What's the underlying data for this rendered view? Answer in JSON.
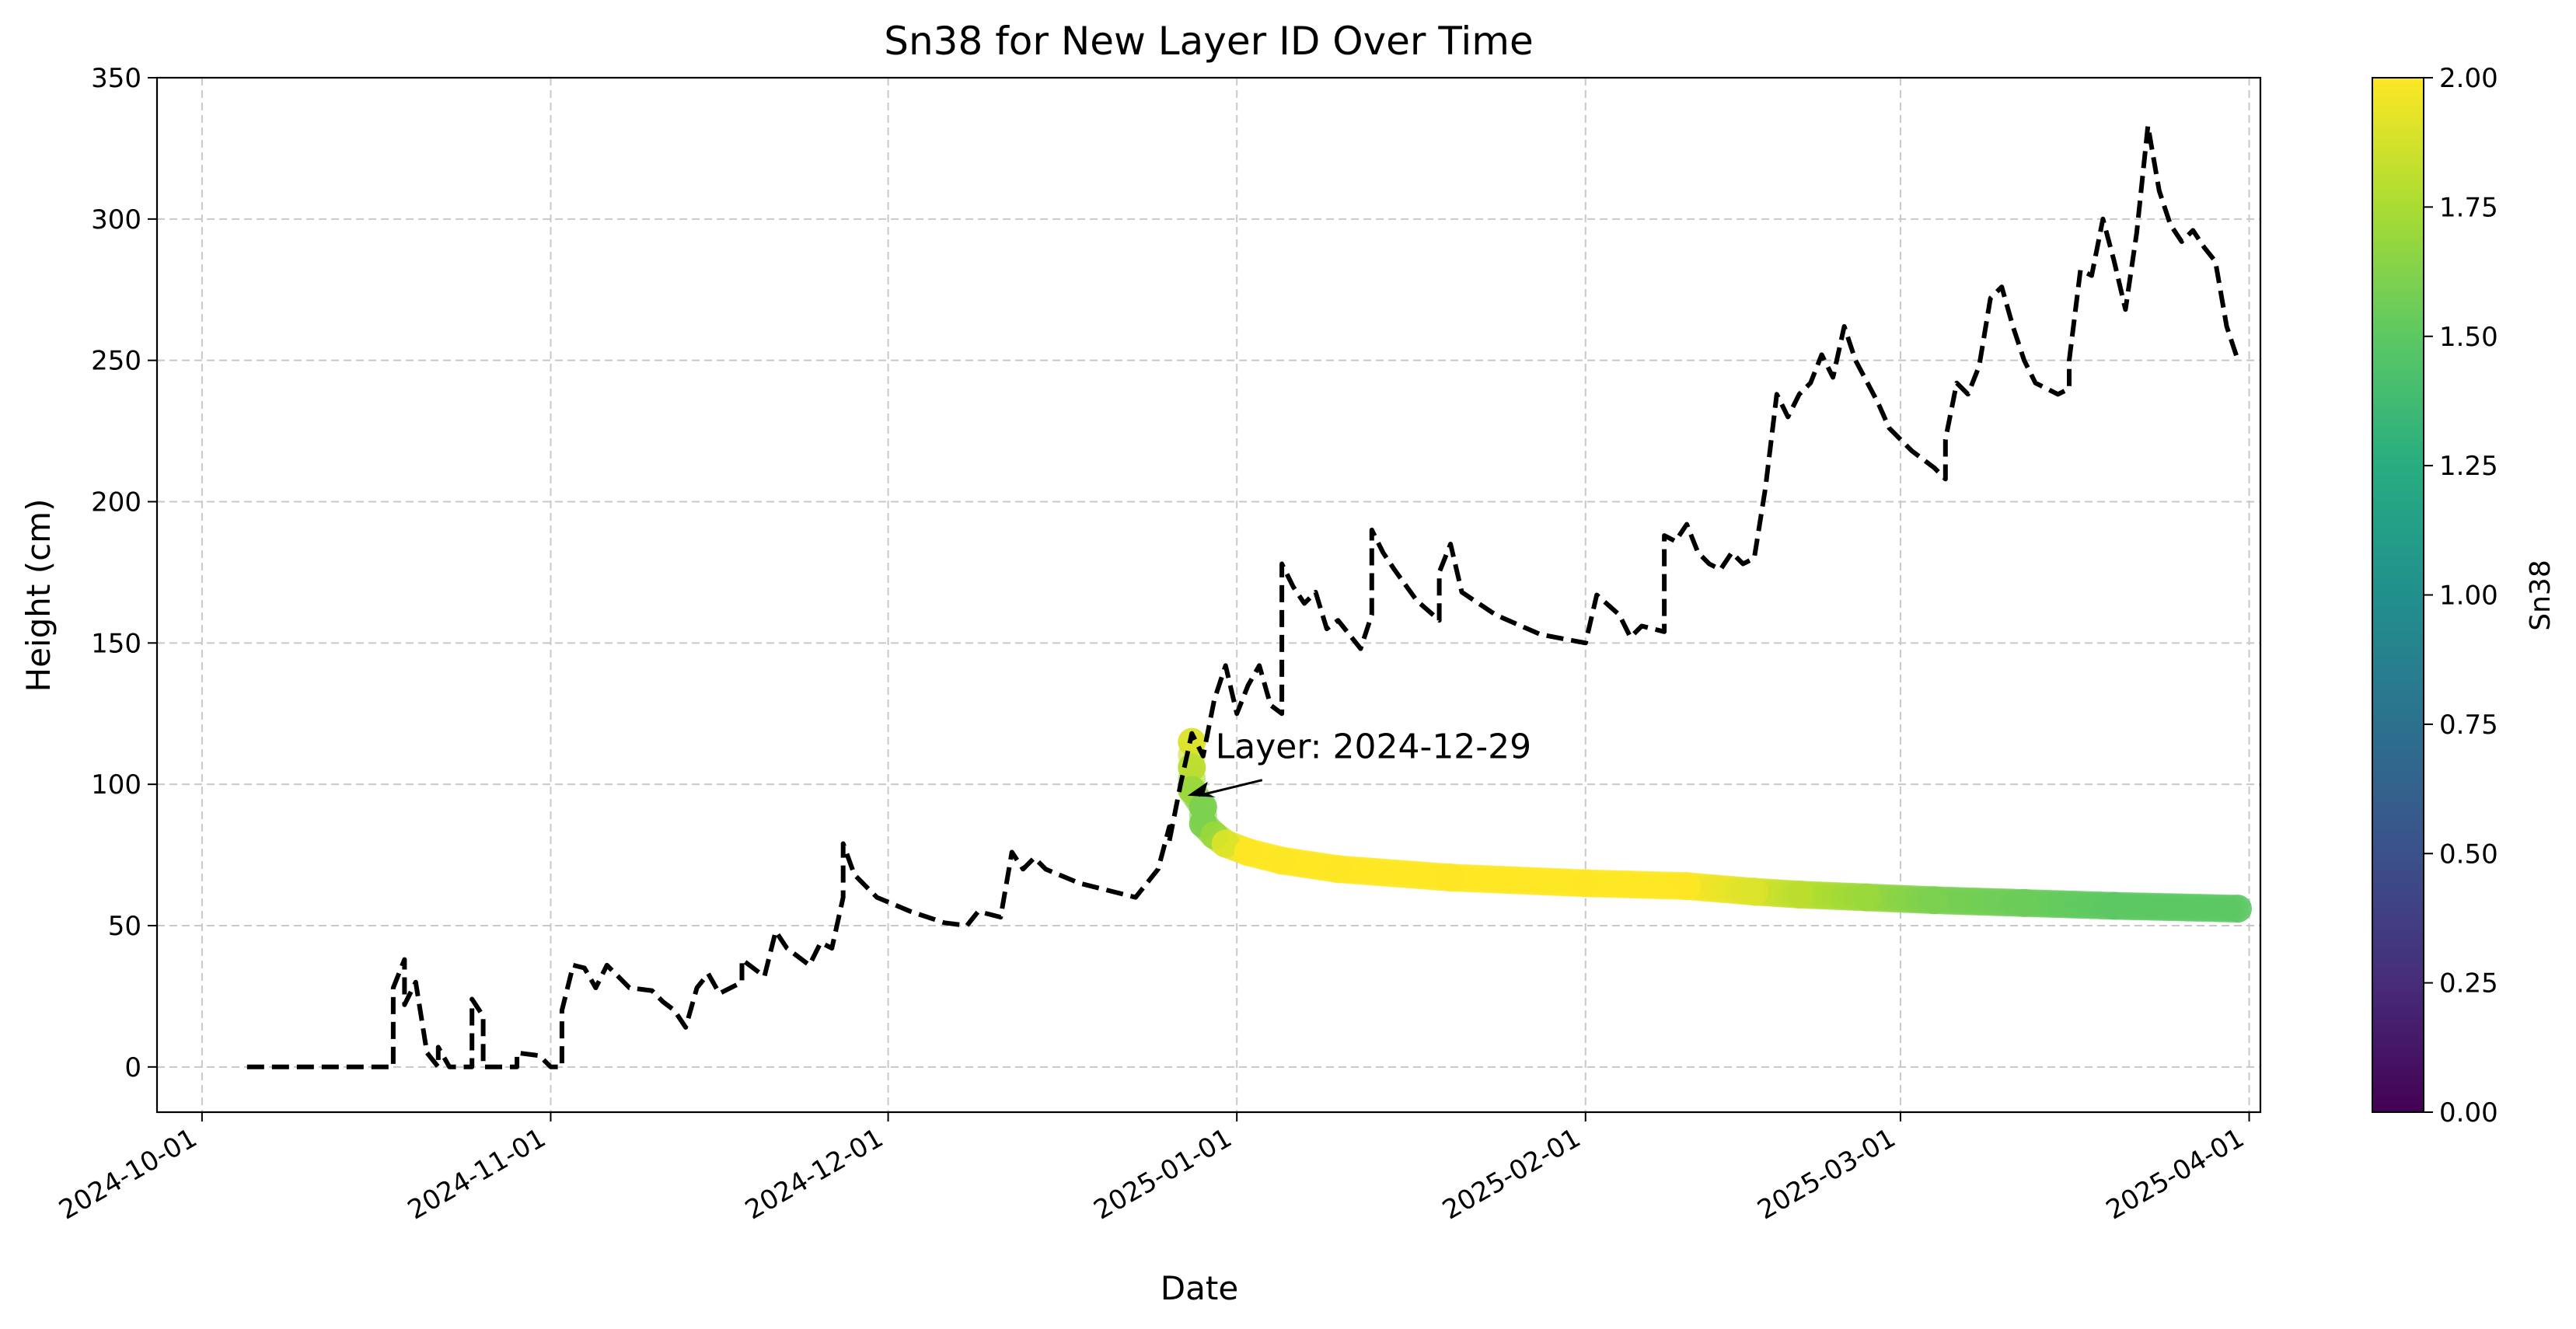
{
  "chart_data": {
    "type": "line",
    "title": "Sn38 for New Layer ID Over Time",
    "xlabel": "Date",
    "ylabel": "Height (cm)",
    "xlim": [
      "2024-09-27",
      "2025-04-02"
    ],
    "ylim": [
      -16,
      350
    ],
    "x_ticks": [
      "2024-10-01",
      "2024-11-01",
      "2024-12-01",
      "2025-01-01",
      "2025-02-01",
      "2025-03-01",
      "2025-04-01"
    ],
    "y_ticks": [
      0,
      50,
      100,
      150,
      200,
      250,
      300,
      350
    ],
    "grid": true,
    "series": [
      {
        "style": "dashed",
        "color": "#000000",
        "points": [
          [
            "2024-10-05",
            0
          ],
          [
            "2024-10-18",
            0
          ],
          [
            "2024-10-18",
            28
          ],
          [
            "2024-10-19",
            38
          ],
          [
            "2024-10-19",
            22
          ],
          [
            "2024-10-20",
            30
          ],
          [
            "2024-10-21",
            5
          ],
          [
            "2024-10-22",
            0
          ],
          [
            "2024-10-22",
            7
          ],
          [
            "2024-10-23",
            0
          ],
          [
            "2024-10-24",
            0
          ],
          [
            "2024-10-25",
            0
          ],
          [
            "2024-10-25",
            24
          ],
          [
            "2024-10-26",
            18
          ],
          [
            "2024-10-26",
            0
          ],
          [
            "2024-10-29",
            0
          ],
          [
            "2024-10-29",
            5
          ],
          [
            "2024-10-31",
            4
          ],
          [
            "2024-11-01",
            0
          ],
          [
            "2024-11-02",
            0
          ],
          [
            "2024-11-02",
            20
          ],
          [
            "2024-11-03",
            36
          ],
          [
            "2024-11-04",
            35
          ],
          [
            "2024-11-05",
            28
          ],
          [
            "2024-11-06",
            36
          ],
          [
            "2024-11-07",
            32
          ],
          [
            "2024-11-08",
            28
          ],
          [
            "2024-11-10",
            27
          ],
          [
            "2024-11-11",
            23
          ],
          [
            "2024-11-12",
            20
          ],
          [
            "2024-11-13",
            14
          ],
          [
            "2024-11-14",
            28
          ],
          [
            "2024-11-15",
            33
          ],
          [
            "2024-11-16",
            26
          ],
          [
            "2024-11-18",
            30
          ],
          [
            "2024-11-18",
            38
          ],
          [
            "2024-11-20",
            32
          ],
          [
            "2024-11-21",
            48
          ],
          [
            "2024-11-22",
            42
          ],
          [
            "2024-11-24",
            36
          ],
          [
            "2024-11-25",
            44
          ],
          [
            "2024-11-26",
            42
          ],
          [
            "2024-11-27",
            60
          ],
          [
            "2024-11-27",
            79
          ],
          [
            "2024-11-28",
            68
          ],
          [
            "2024-11-30",
            60
          ],
          [
            "2024-12-03",
            55
          ],
          [
            "2024-12-06",
            51
          ],
          [
            "2024-12-08",
            50
          ],
          [
            "2024-12-09",
            55
          ],
          [
            "2024-12-10",
            54
          ],
          [
            "2024-12-11",
            53
          ],
          [
            "2024-12-12",
            76
          ],
          [
            "2024-12-13",
            70
          ],
          [
            "2024-12-14",
            74
          ],
          [
            "2024-12-15",
            70
          ],
          [
            "2024-12-18",
            65
          ],
          [
            "2024-12-23",
            60
          ],
          [
            "2024-12-24",
            65
          ],
          [
            "2024-12-25",
            70
          ],
          [
            "2024-12-26",
            85
          ],
          [
            "2024-12-26",
            80
          ],
          [
            "2024-12-27",
            100
          ],
          [
            "2024-12-28",
            118
          ],
          [
            "2024-12-29",
            110
          ],
          [
            "2024-12-30",
            130
          ],
          [
            "2024-12-31",
            142
          ],
          [
            "2025-01-01",
            125
          ],
          [
            "2025-01-02",
            135
          ],
          [
            "2025-01-03",
            142
          ],
          [
            "2025-01-04",
            128
          ],
          [
            "2025-01-05",
            125
          ],
          [
            "2025-01-05",
            148
          ],
          [
            "2025-01-05",
            178
          ],
          [
            "2025-01-06",
            170
          ],
          [
            "2025-01-07",
            164
          ],
          [
            "2025-01-08",
            168
          ],
          [
            "2025-01-09",
            155
          ],
          [
            "2025-01-10",
            158
          ],
          [
            "2025-01-12",
            148
          ],
          [
            "2025-01-13",
            160
          ],
          [
            "2025-01-13",
            190
          ],
          [
            "2025-01-14",
            182
          ],
          [
            "2025-01-15",
            176
          ],
          [
            "2025-01-17",
            165
          ],
          [
            "2025-01-19",
            158
          ],
          [
            "2025-01-19",
            175
          ],
          [
            "2025-01-20",
            185
          ],
          [
            "2025-01-21",
            168
          ],
          [
            "2025-01-24",
            160
          ],
          [
            "2025-01-28",
            153
          ],
          [
            "2025-02-01",
            150
          ],
          [
            "2025-02-02",
            167
          ],
          [
            "2025-02-04",
            160
          ],
          [
            "2025-02-05",
            152
          ],
          [
            "2025-02-06",
            156
          ],
          [
            "2025-02-08",
            154
          ],
          [
            "2025-02-08",
            188
          ],
          [
            "2025-02-09",
            186
          ],
          [
            "2025-02-10",
            192
          ],
          [
            "2025-02-11",
            182
          ],
          [
            "2025-02-12",
            178
          ],
          [
            "2025-02-13",
            176
          ],
          [
            "2025-02-14",
            182
          ],
          [
            "2025-02-15",
            178
          ],
          [
            "2025-02-16",
            180
          ],
          [
            "2025-02-17",
            205
          ],
          [
            "2025-02-18",
            238
          ],
          [
            "2025-02-19",
            230
          ],
          [
            "2025-02-20",
            238
          ],
          [
            "2025-02-21",
            242
          ],
          [
            "2025-02-22",
            252
          ],
          [
            "2025-02-23",
            244
          ],
          [
            "2025-02-24",
            262
          ],
          [
            "2025-02-25",
            250
          ],
          [
            "2025-02-27",
            235
          ],
          [
            "2025-02-28",
            226
          ],
          [
            "2025-03-02",
            218
          ],
          [
            "2025-03-04",
            212
          ],
          [
            "2025-03-05",
            208
          ],
          [
            "2025-03-05",
            222
          ],
          [
            "2025-03-06",
            242
          ],
          [
            "2025-03-07",
            238
          ],
          [
            "2025-03-08",
            248
          ],
          [
            "2025-03-09",
            272
          ],
          [
            "2025-03-10",
            276
          ],
          [
            "2025-03-11",
            262
          ],
          [
            "2025-03-12",
            250
          ],
          [
            "2025-03-13",
            242
          ],
          [
            "2025-03-15",
            238
          ],
          [
            "2025-03-16",
            240
          ],
          [
            "2025-03-16",
            250
          ],
          [
            "2025-03-17",
            282
          ],
          [
            "2025-03-18",
            280
          ],
          [
            "2025-03-19",
            300
          ],
          [
            "2025-03-20",
            285
          ],
          [
            "2025-03-21",
            268
          ],
          [
            "2025-03-22",
            295
          ],
          [
            "2025-03-23",
            333
          ],
          [
            "2025-03-24",
            310
          ],
          [
            "2025-03-25",
            298
          ],
          [
            "2025-03-26",
            292
          ],
          [
            "2025-03-27",
            296
          ],
          [
            "2025-03-28",
            290
          ],
          [
            "2025-03-29",
            285
          ],
          [
            "2025-03-30",
            262
          ],
          [
            "2025-03-31",
            250
          ]
        ]
      },
      {
        "name": "Sn38",
        "style": "scatter",
        "color_by": "Sn38",
        "points": [
          [
            "2024-12-28",
            115,
            1.9
          ],
          [
            "2024-12-28",
            106,
            1.8
          ],
          [
            "2024-12-28",
            98,
            1.7
          ],
          [
            "2024-12-29",
            92,
            1.6
          ],
          [
            "2024-12-29",
            86,
            1.6
          ],
          [
            "2024-12-30",
            82,
            1.7
          ],
          [
            "2024-12-31",
            79,
            1.9
          ],
          [
            "2025-01-02",
            76,
            2.0
          ],
          [
            "2025-01-05",
            73,
            2.0
          ],
          [
            "2025-01-10",
            70,
            2.0
          ],
          [
            "2025-01-20",
            67,
            2.0
          ],
          [
            "2025-02-01",
            65,
            2.0
          ],
          [
            "2025-02-10",
            64,
            2.0
          ],
          [
            "2025-02-16",
            62,
            1.9
          ],
          [
            "2025-02-20",
            61,
            1.8
          ],
          [
            "2025-02-26",
            60,
            1.7
          ],
          [
            "2025-03-04",
            59,
            1.6
          ],
          [
            "2025-03-12",
            58,
            1.55
          ],
          [
            "2025-03-20",
            57,
            1.5
          ],
          [
            "2025-03-31",
            56,
            1.5
          ]
        ]
      }
    ],
    "annotations": [
      {
        "text": "Layer: 2024-12-29",
        "x": "2024-12-29",
        "y": 96
      }
    ],
    "colorbar": {
      "label": "Sn38",
      "colormap": "viridis",
      "range": [
        0,
        2
      ],
      "ticks": [
        "0.00",
        "0.25",
        "0.50",
        "0.75",
        "1.00",
        "1.25",
        "1.50",
        "1.75",
        "2.00"
      ]
    }
  }
}
